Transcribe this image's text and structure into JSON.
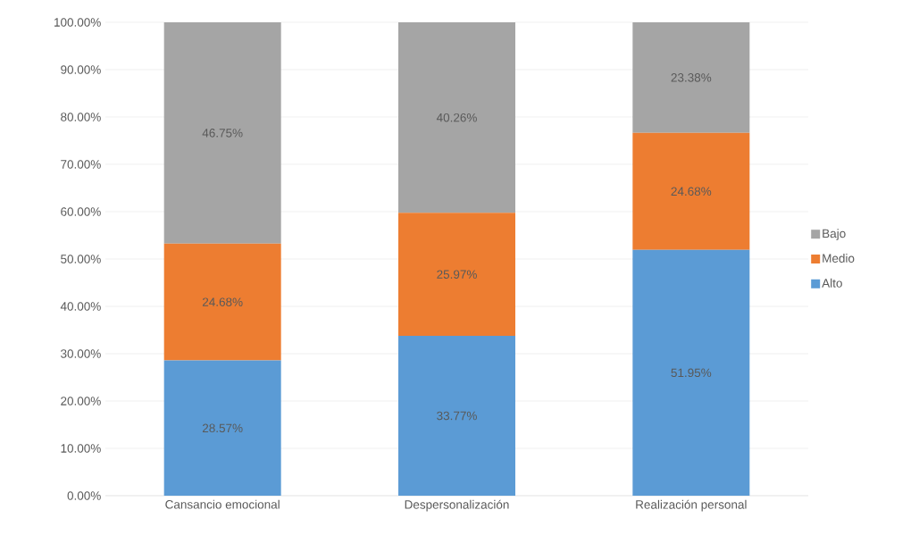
{
  "chart_data": {
    "type": "bar",
    "stacked": true,
    "categories": [
      "Cansancio emocional",
      "Despersonalización",
      "Realización personal"
    ],
    "series": [
      {
        "name": "Alto",
        "color": "#5b9bd5",
        "values": [
          28.57,
          33.77,
          51.95
        ],
        "value_labels": [
          "28.57%",
          "33.77%",
          "51.95%"
        ]
      },
      {
        "name": "Medio",
        "color": "#ed7d31",
        "values": [
          24.68,
          25.97,
          24.68
        ],
        "value_labels": [
          "24.68%",
          "25.97%",
          "24.68%"
        ]
      },
      {
        "name": "Bajo",
        "color": "#a5a5a5",
        "values": [
          46.75,
          40.26,
          23.38
        ],
        "value_labels": [
          "46.75%",
          "40.26%",
          "23.38%"
        ]
      }
    ],
    "ylim": [
      0,
      100
    ],
    "yticks": [
      {
        "value": 0,
        "label": "0.00%"
      },
      {
        "value": 10,
        "label": "10.00%"
      },
      {
        "value": 20,
        "label": "20.00%"
      },
      {
        "value": 30,
        "label": "30.00%"
      },
      {
        "value": 40,
        "label": "40.00%"
      },
      {
        "value": 50,
        "label": "50.00%"
      },
      {
        "value": 60,
        "label": "60.00%"
      },
      {
        "value": 70,
        "label": "70.00%"
      },
      {
        "value": 80,
        "label": "80.00%"
      },
      {
        "value": 90,
        "label": "90.00%"
      },
      {
        "value": 100,
        "label": "100.00%"
      }
    ],
    "grid": "y",
    "legend": "right"
  }
}
